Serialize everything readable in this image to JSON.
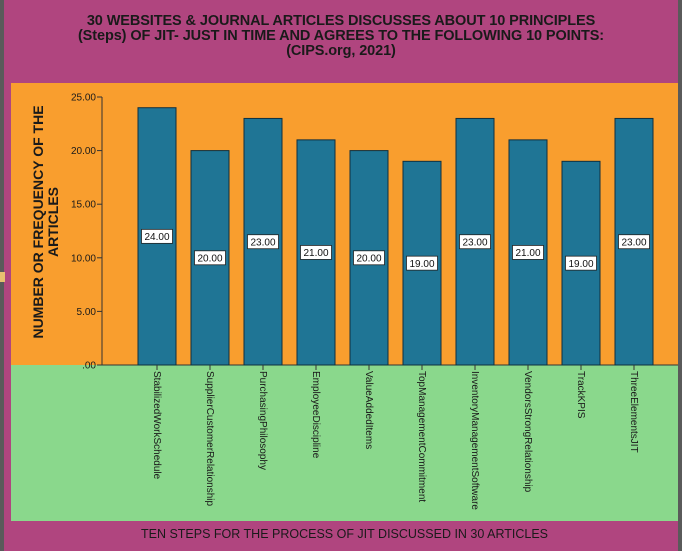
{
  "title_lines": [
    "30 WEBSITES & JOURNAL ARTICLES DISCUSSES ABOUT 10 PRINCIPLES",
    "(Steps) OF JIT- JUST IN TIME AND AGREES TO THE FOLLOWING 10 POINTS:",
    "(CIPS.org, 2021)"
  ],
  "ylabel_lines": [
    "NUMBER OR FREQUENCY OF THE",
    "ARTICLES"
  ],
  "xlabel": "TEN STEPS FOR THE PROCESS OF JIT DISCUSSED IN 30 ARTICLES",
  "colors": {
    "frame": "#b0457f",
    "plot_background": "#f99e2e",
    "label_background": "#8ad88c",
    "bar_fill": "#1f7595",
    "bar_stroke": "#0f2f3f"
  },
  "chart_data": {
    "type": "bar",
    "categories": [
      "StabilizedWorkSchedule",
      "SupplierCustomerRelationship",
      "PurchasingPhilosophy",
      "EmployeeDiscipline",
      "ValueAddedItems",
      "TopManagementCommitment",
      "InventoryManagementSoftware",
      "VendorsStrongRelationship",
      "TrackKPIS",
      "ThreeElementsJIT"
    ],
    "values": [
      24,
      20,
      23,
      21,
      20,
      19,
      23,
      21,
      19,
      23
    ],
    "data_labels": [
      "24.00",
      "20.00",
      "23.00",
      "21.00",
      "20.00",
      "19.00",
      "23.00",
      "21.00",
      "19.00",
      "23.00"
    ],
    "yticks": [
      0,
      5,
      10,
      15,
      20,
      25
    ],
    "ytick_labels": [
      ".00",
      "5.00",
      "10.00",
      "15.00",
      "20.00",
      "25.00"
    ],
    "ylim": [
      0,
      25
    ],
    "grid": false,
    "legend": "none"
  }
}
